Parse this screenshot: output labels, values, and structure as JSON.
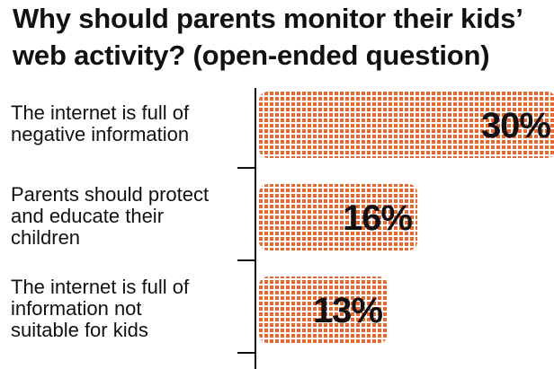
{
  "title": "Why should parents monitor their kids’ web activity? (open-ended question)",
  "colors": {
    "bar": "#e8672c",
    "grid": "#ffffff",
    "text": "#111111",
    "axis": "#111111"
  },
  "chart_data": {
    "type": "bar",
    "orientation": "horizontal",
    "title": "Why should parents monitor their kids’ web activity? (open-ended question)",
    "categories": [
      "The internet is full of negative information",
      "Parents should protect and educate their children",
      "The internet is full of information not suitable for kids"
    ],
    "category_lines": [
      [
        "The internet is full of",
        "negative information"
      ],
      [
        "Parents should protect",
        "and educate their",
        "children"
      ],
      [
        "The internet is full of",
        "information not",
        "suitable for kids"
      ]
    ],
    "values": [
      30,
      16,
      13
    ],
    "value_labels": [
      "30%",
      "16%",
      "13%"
    ],
    "xlim": [
      0,
      30
    ],
    "grid": false
  }
}
